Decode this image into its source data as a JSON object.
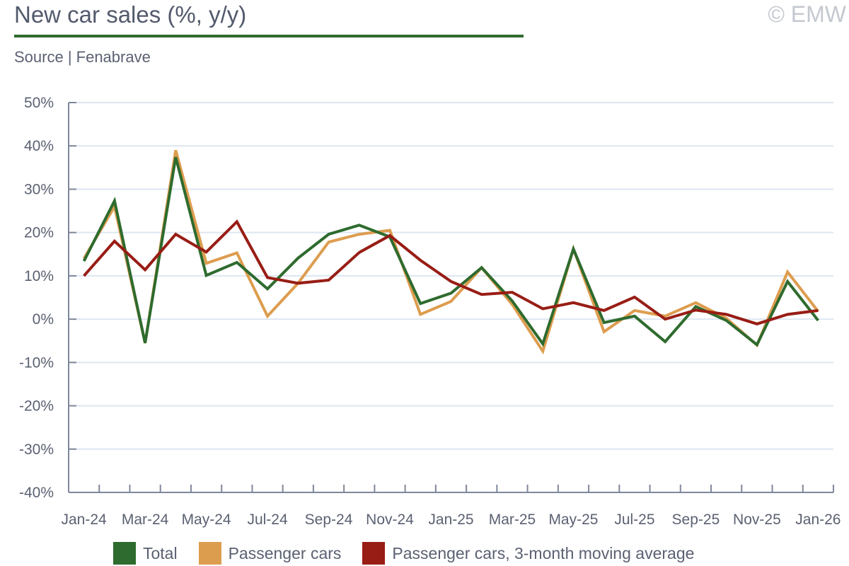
{
  "header": {
    "title": "New car sales (%, y/y)",
    "copyright": "© EMW",
    "source": "Source | Fenabrave"
  },
  "chart_data": {
    "type": "line",
    "title": "New car sales (%, y/y)",
    "xlabel": "",
    "ylabel": "",
    "ylim": [
      -40,
      50
    ],
    "yticks": [
      50,
      40,
      30,
      20,
      10,
      0,
      -10,
      -20,
      -30,
      -40
    ],
    "ytick_labels": [
      "50%",
      "40%",
      "30%",
      "20%",
      "10%",
      "0%",
      "-10%",
      "-20%",
      "-30%",
      "-40%"
    ],
    "x": [
      "Jan-24",
      "Feb-24",
      "Mar-24",
      "Apr-24",
      "May-24",
      "Jun-24",
      "Jul-24",
      "Aug-24",
      "Sep-24",
      "Oct-24",
      "Nov-24",
      "Dec-24",
      "Jan-25",
      "Feb-25",
      "Mar-25",
      "Apr-25",
      "May-25",
      "Jun-25",
      "Jul-25",
      "Aug-25",
      "Sep-25",
      "Oct-25",
      "Nov-25",
      "Dec-25",
      "Jan-26"
    ],
    "xtick_labels": [
      "Jan-24",
      "Mar-24",
      "May-24",
      "Jul-24",
      "Sep-24",
      "Nov-24",
      "Jan-25",
      "Mar-25",
      "May-25",
      "Jul-25",
      "Sep-25",
      "Nov-25",
      "Jan-26"
    ],
    "grid": true,
    "legend_position": "bottom",
    "series": [
      {
        "name": "Total",
        "color": "#2e6b2e",
        "values": [
          13.4,
          27.3,
          -5.5,
          37.4,
          10.1,
          13.1,
          7.0,
          14.1,
          19.6,
          21.7,
          19.0,
          3.6,
          6.0,
          11.9,
          4.2,
          -5.7,
          16.2,
          -0.8,
          0.7,
          -5.2,
          2.9,
          -0.3,
          -5.9,
          8.7,
          -0.3
        ]
      },
      {
        "name": "Passenger cars",
        "color": "#dd9d4f",
        "values": [
          14.0,
          26.0,
          -5.5,
          39.0,
          12.9,
          15.3,
          0.7,
          8.3,
          17.8,
          19.6,
          20.5,
          1.1,
          4.1,
          11.9,
          3.4,
          -7.4,
          16.2,
          -2.9,
          2.0,
          0.7,
          3.8,
          0.2,
          -6.0,
          10.9,
          1.8
        ]
      },
      {
        "name": "Passenger cars, 3-month moving average",
        "color": "#981d15",
        "values": [
          10.0,
          18.0,
          11.4,
          19.6,
          15.5,
          22.5,
          9.6,
          8.3,
          9.0,
          15.4,
          19.3,
          13.6,
          8.7,
          5.7,
          6.2,
          2.4,
          3.8,
          2.0,
          5.1,
          0.0,
          2.1,
          1.1,
          -1.1,
          1.1,
          2.0
        ]
      }
    ]
  }
}
